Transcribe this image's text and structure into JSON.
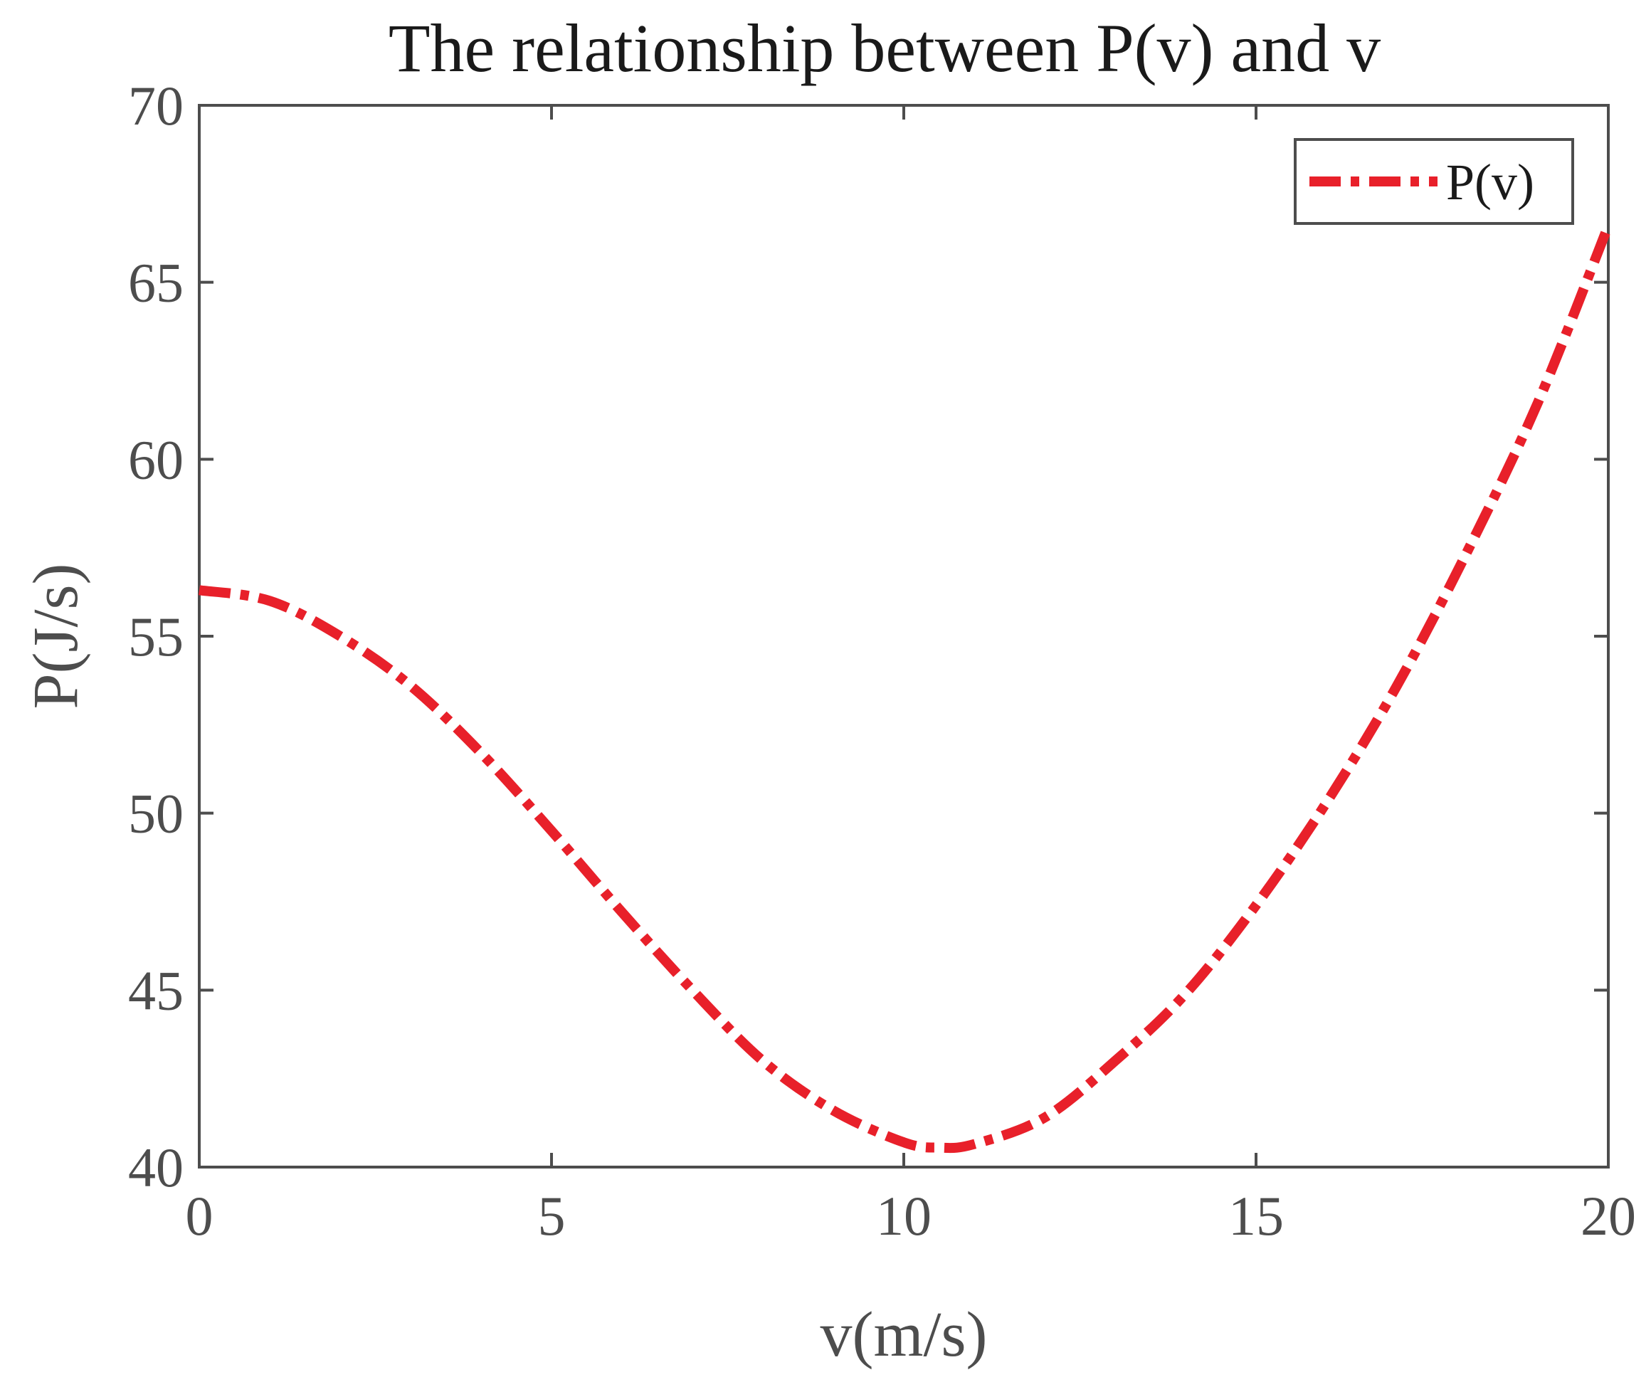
{
  "colors": {
    "series": "#e8202a",
    "axis": "#4d4d4d",
    "background": "#ffffff"
  },
  "chart_data": {
    "type": "line",
    "title": "The relationship between P(v) and v",
    "xlabel": "v(m/s)",
    "ylabel": "P(J/s)",
    "xlim": [
      0,
      20
    ],
    "ylim": [
      40,
      70
    ],
    "xticks": [
      0,
      5,
      10,
      15,
      20
    ],
    "yticks": [
      40,
      45,
      50,
      55,
      60,
      65,
      70
    ],
    "xtick_labels": [
      "0",
      "5",
      "10",
      "15",
      "20"
    ],
    "ytick_labels": [
      "40",
      "45",
      "50",
      "55",
      "60",
      "65",
      "70"
    ],
    "grid": false,
    "legend": {
      "position": "top-right",
      "entries": [
        "P(v)"
      ]
    },
    "series": [
      {
        "name": "P(v)",
        "line_style": "dash-dot",
        "x": [
          0,
          1,
          2,
          3,
          4,
          5,
          6,
          7,
          8,
          9,
          10,
          10.5,
          11,
          12,
          13,
          14,
          15,
          16,
          17,
          18,
          19,
          20
        ],
        "values": [
          56.3,
          56.0,
          55.0,
          53.6,
          51.7,
          49.5,
          47.2,
          45.0,
          43.0,
          41.6,
          40.7,
          40.55,
          40.65,
          41.4,
          43.0,
          44.9,
          47.4,
          50.3,
          53.6,
          57.4,
          61.6,
          66.6
        ]
      }
    ]
  }
}
